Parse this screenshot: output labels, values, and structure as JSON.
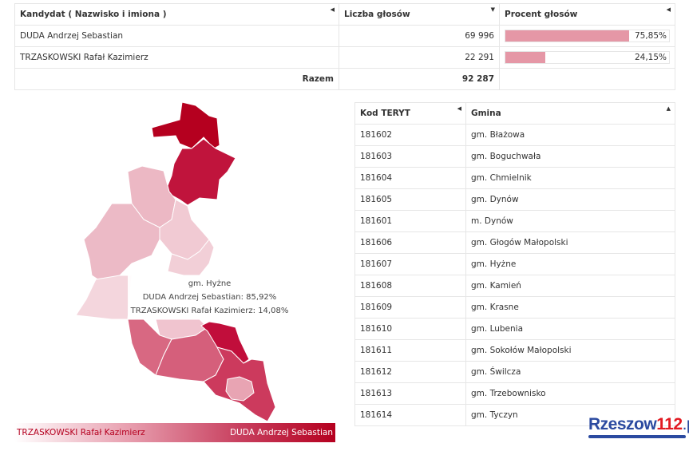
{
  "results": {
    "headers": [
      "Kandydat ( Nazwisko i imiona )",
      "Liczba głosów",
      "Procent głosów"
    ],
    "rows": [
      {
        "name": "DUDA Andrzej Sebastian",
        "votes": "69 996",
        "percent": "75,85%",
        "pct_value": 75.85
      },
      {
        "name": "TRZASKOWSKI Rafał Kazimierz",
        "votes": "22 291",
        "percent": "24,15%",
        "pct_value": 24.15
      }
    ],
    "total_label": "Razem",
    "total_votes": "92 287"
  },
  "tooltip": {
    "title": "gm. Hyżne",
    "line1": "DUDA Andrzej Sebastian: 85,92%",
    "line2": "TRZASKOWSKI Rafał Kazimierz: 14,08%"
  },
  "legend": {
    "left": "TRZASKOWSKI Rafał Kazimierz",
    "right": "DUDA Andrzej Sebastian"
  },
  "teryt": {
    "headers": [
      "Kod TERYT",
      "Gmina"
    ],
    "rows": [
      [
        "181602",
        "gm. Błażowa"
      ],
      [
        "181603",
        "gm. Boguchwała"
      ],
      [
        "181604",
        "gm. Chmielnik"
      ],
      [
        "181605",
        "gm. Dynów"
      ],
      [
        "181601",
        "m. Dynów"
      ],
      [
        "181606",
        "gm. Głogów Małopolski"
      ],
      [
        "181607",
        "gm. Hyżne"
      ],
      [
        "181608",
        "gm. Kamień"
      ],
      [
        "181609",
        "gm. Krasne"
      ],
      [
        "181610",
        "gm. Lubenia"
      ],
      [
        "181611",
        "gm. Sokołów Małopolski"
      ],
      [
        "181612",
        "gm. Świlcza"
      ],
      [
        "181613",
        "gm. Trzebownisko"
      ],
      [
        "181614",
        "gm. Tyczyn"
      ]
    ]
  },
  "logo": {
    "text1": "Rzeszow",
    "text2": "112",
    ".pl": ".pl"
  },
  "colors": {
    "duda": "#b5001f",
    "bar": "#e597a6"
  }
}
